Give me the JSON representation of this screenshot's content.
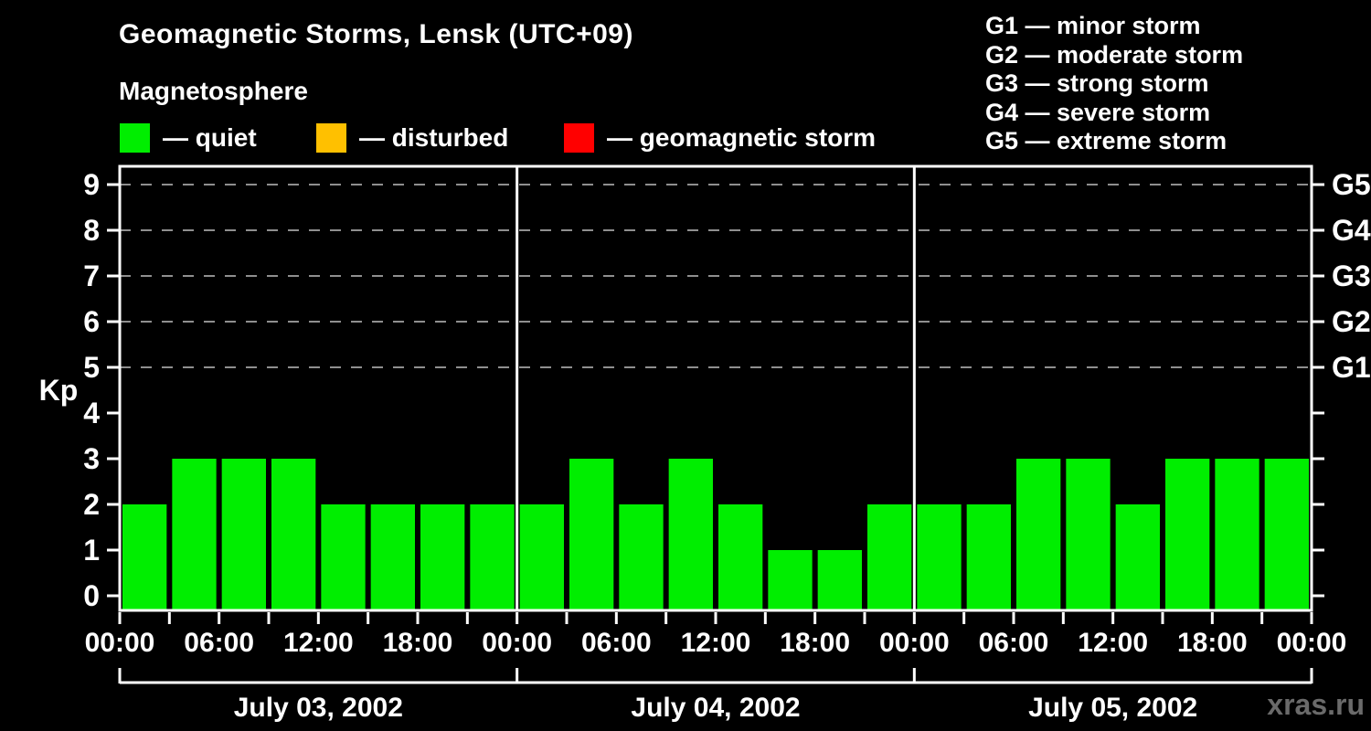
{
  "header": {
    "title": "Geomagnetic Storms, Lensk (UTC+09)",
    "subtitle": "Magnetosphere"
  },
  "legend": {
    "items": [
      {
        "name": "quiet",
        "label": "— quiet",
        "color": "#00ee00"
      },
      {
        "name": "disturbed",
        "label": "— disturbed",
        "color": "#ffc000"
      },
      {
        "name": "geomagnetic-storm",
        "label": "— geomagnetic storm",
        "color": "#ff0000"
      }
    ]
  },
  "storm_scale_legend": {
    "items": [
      "G1 — minor storm",
      "G2 — moderate storm",
      "G3 — strong storm",
      "G4 — severe storm",
      "G5 — extreme storm"
    ]
  },
  "watermark": "xras.ru",
  "colors": {
    "background": "#000000",
    "axis": "#ffffff",
    "gridline": "#8f8f8f",
    "bar": "#00ee00",
    "text": "#ffffff",
    "watermark": "#6a6a6a"
  },
  "chart_data": {
    "type": "bar",
    "ylabel": "Kp",
    "yticks": [
      0,
      1,
      2,
      3,
      4,
      5,
      6,
      7,
      8,
      9
    ],
    "ylim": [
      -0.32,
      9.4
    ],
    "gridline_kp": [
      5,
      6,
      7,
      8,
      9
    ],
    "grid_style": "dashed",
    "right_axis": [
      {
        "label": "G1",
        "kp": 5
      },
      {
        "label": "G2",
        "kp": 6
      },
      {
        "label": "G3",
        "kp": 7
      },
      {
        "label": "G4",
        "kp": 8
      },
      {
        "label": "G5",
        "kp": 9
      }
    ],
    "hours_per_bar": 3,
    "x_time_labels": [
      "00:00",
      "06:00",
      "12:00",
      "18:00"
    ],
    "bar_color": "#00ee00",
    "days": [
      {
        "date": "July 03, 2002",
        "values": [
          2,
          3,
          3,
          3,
          2,
          2,
          2,
          2
        ]
      },
      {
        "date": "July 04, 2002",
        "values": [
          2,
          3,
          2,
          3,
          2,
          1,
          1,
          2
        ]
      },
      {
        "date": "July 05, 2002",
        "values": [
          2,
          2,
          3,
          3,
          2,
          3,
          3,
          3
        ]
      }
    ]
  }
}
